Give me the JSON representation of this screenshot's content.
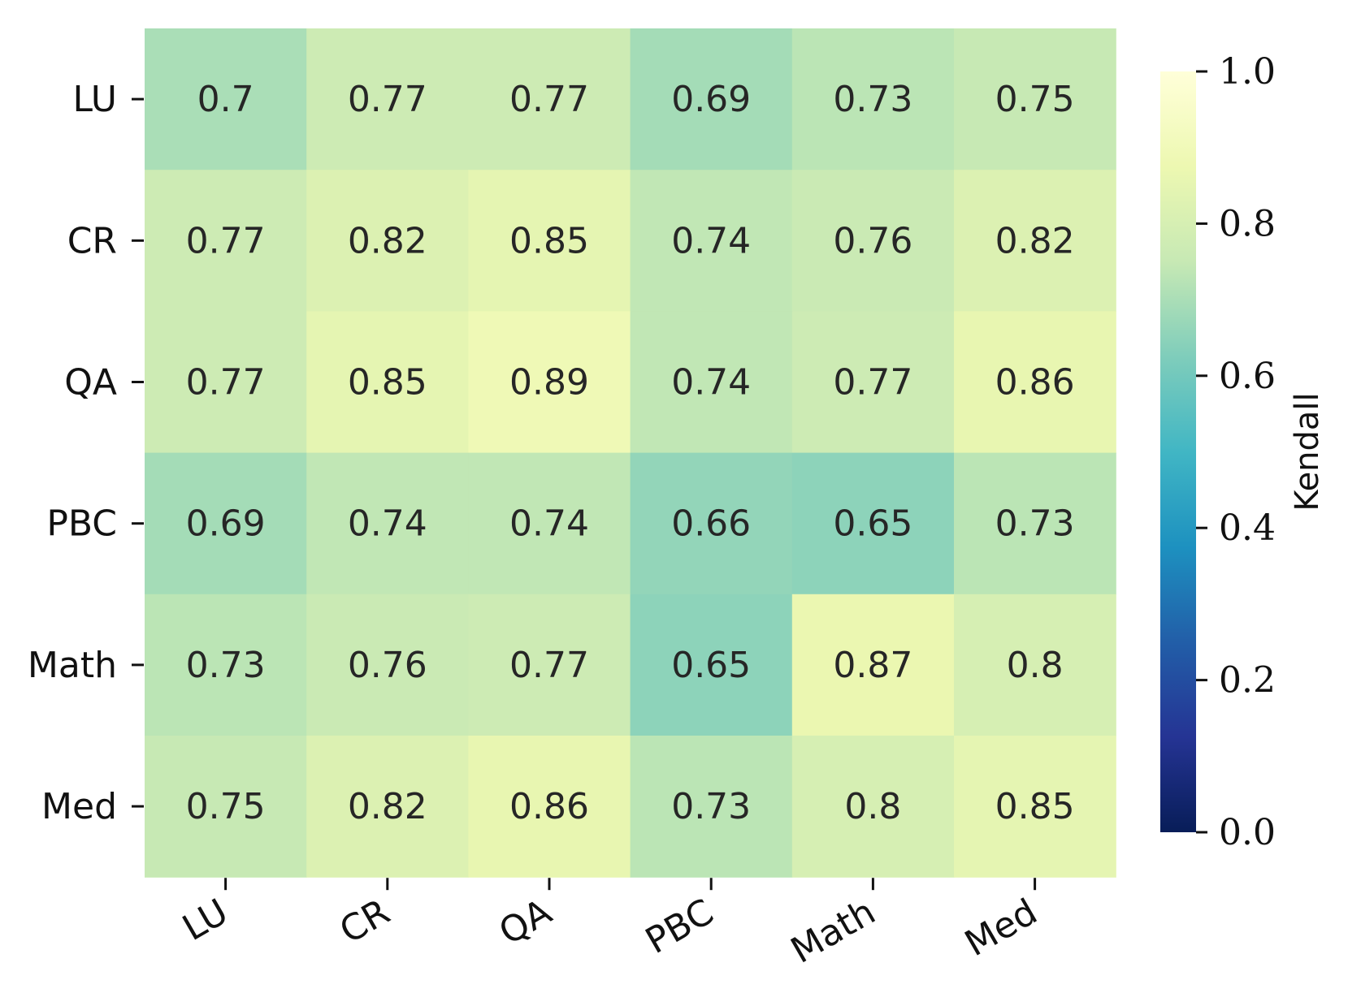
{
  "chart_data": {
    "type": "heatmap",
    "rows": [
      "LU",
      "CR",
      "QA",
      "PBC",
      "Math",
      "Med"
    ],
    "columns": [
      "LU",
      "CR",
      "QA",
      "PBC",
      "Math",
      "Med"
    ],
    "values": [
      [
        0.7,
        0.77,
        0.77,
        0.69,
        0.73,
        0.75
      ],
      [
        0.77,
        0.82,
        0.85,
        0.74,
        0.76,
        0.82
      ],
      [
        0.77,
        0.85,
        0.89,
        0.74,
        0.77,
        0.86
      ],
      [
        0.69,
        0.74,
        0.74,
        0.66,
        0.65,
        0.73
      ],
      [
        0.73,
        0.76,
        0.77,
        0.65,
        0.87,
        0.8
      ],
      [
        0.75,
        0.82,
        0.86,
        0.73,
        0.8,
        0.85
      ]
    ],
    "cell_labels": [
      [
        "0.7",
        "0.77",
        "0.77",
        "0.69",
        "0.73",
        "0.75"
      ],
      [
        "0.77",
        "0.82",
        "0.85",
        "0.74",
        "0.76",
        "0.82"
      ],
      [
        "0.77",
        "0.85",
        "0.89",
        "0.74",
        "0.77",
        "0.86"
      ],
      [
        "0.69",
        "0.74",
        "0.74",
        "0.66",
        "0.65",
        "0.73"
      ],
      [
        "0.73",
        "0.76",
        "0.77",
        "0.65",
        "0.87",
        "0.8"
      ],
      [
        "0.75",
        "0.82",
        "0.86",
        "0.73",
        "0.8",
        "0.85"
      ]
    ],
    "colorbar": {
      "label": "Kendall",
      "range": [
        0.0,
        1.0
      ],
      "ticks": [
        0.0,
        0.2,
        0.4,
        0.6,
        0.8,
        1.0
      ],
      "tick_labels": [
        "0.0",
        "0.2",
        "0.4",
        "0.6",
        "0.8",
        "1.0"
      ],
      "colormap": "YlGnBu_r",
      "colormap_stops": [
        {
          "value": 0.0,
          "color": "#081d58"
        },
        {
          "value": 0.125,
          "color": "#253494"
        },
        {
          "value": 0.25,
          "color": "#225ea8"
        },
        {
          "value": 0.375,
          "color": "#1d91c0"
        },
        {
          "value": 0.5,
          "color": "#41b6c4"
        },
        {
          "value": 0.625,
          "color": "#7fcdbb"
        },
        {
          "value": 0.75,
          "color": "#c7e9b4"
        },
        {
          "value": 0.875,
          "color": "#edf8b1"
        },
        {
          "value": 1.0,
          "color": "#ffffd9"
        }
      ]
    },
    "xtick_rotation_deg": 30,
    "grid": false
  }
}
